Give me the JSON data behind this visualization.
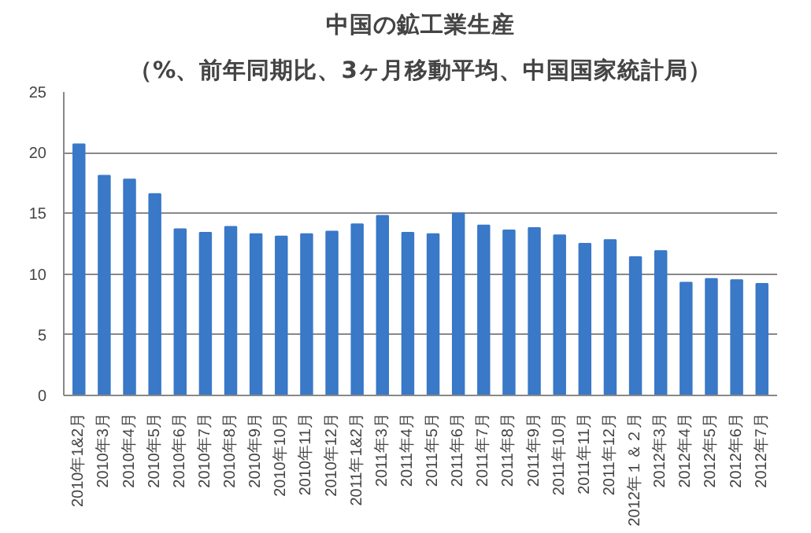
{
  "chart_data": {
    "type": "bar",
    "title": "中国の鉱工業生産",
    "subtitle": "（%、前年同期比、3ヶ月移動平均、中国国家統計局）",
    "categories": [
      "2010年1&2月",
      "2010年3月",
      "2010年4月",
      "2010年5月",
      "2010年6月",
      "2010年7月",
      "2010年8月",
      "2010年9月",
      "2010年10月",
      "2010年11月",
      "2010年12月",
      "2011年1&2月",
      "2011年3月",
      "2011年4月",
      "2011年5月",
      "2011年6月",
      "2011年7月",
      "2011年8月",
      "2011年9月",
      "2011年10月",
      "2011年11月",
      "2011年12月",
      "2012年１＆２月",
      "2012年3月",
      "2012年4月",
      "2012年5月",
      "2012年6月",
      "2012年7月"
    ],
    "values": [
      20.7,
      18.1,
      17.8,
      16.6,
      13.7,
      13.4,
      13.9,
      13.3,
      13.1,
      13.3,
      13.5,
      14.1,
      14.8,
      13.4,
      13.3,
      15.0,
      14.0,
      13.6,
      13.8,
      13.2,
      12.5,
      12.8,
      11.4,
      11.9,
      9.3,
      9.6,
      9.5,
      9.2
    ],
    "color": "#3a78c8",
    "ylim": [
      0,
      25
    ],
    "yticks": [
      0,
      5,
      10,
      15,
      20,
      25
    ],
    "grid": "y"
  }
}
